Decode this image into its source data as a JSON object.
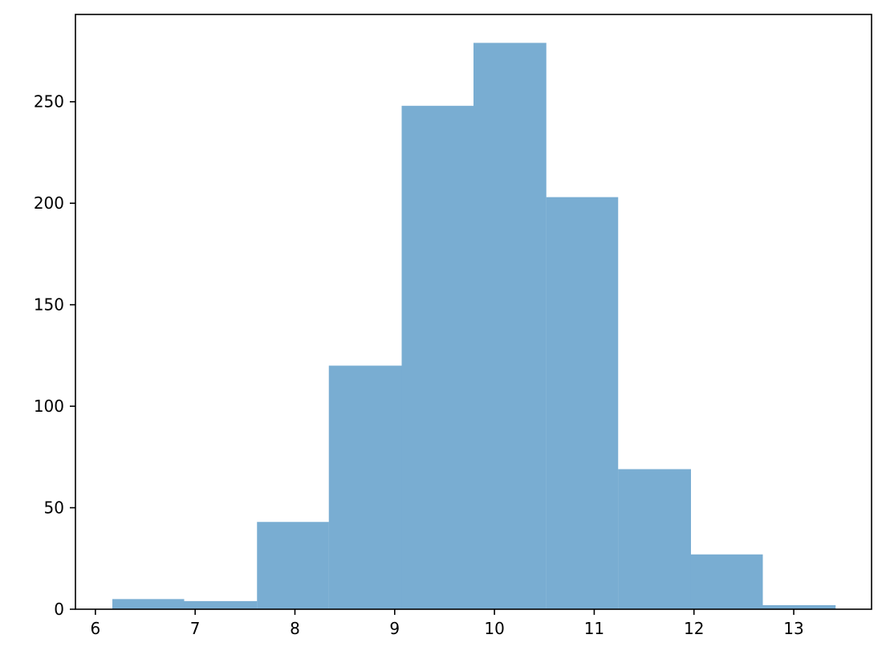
{
  "chart_data": {
    "type": "bar",
    "subtype": "histogram",
    "title": "",
    "xlabel": "",
    "ylabel": "",
    "bins": [
      {
        "x0": 6.17,
        "x1": 6.89,
        "count": 5
      },
      {
        "x0": 6.89,
        "x1": 7.62,
        "count": 4
      },
      {
        "x0": 7.62,
        "x1": 8.34,
        "count": 43
      },
      {
        "x0": 8.34,
        "x1": 9.07,
        "count": 120
      },
      {
        "x0": 9.07,
        "x1": 9.79,
        "count": 248
      },
      {
        "x0": 9.79,
        "x1": 10.52,
        "count": 279
      },
      {
        "x0": 10.52,
        "x1": 11.24,
        "count": 203
      },
      {
        "x0": 11.24,
        "x1": 11.97,
        "count": 69
      },
      {
        "x0": 11.97,
        "x1": 12.69,
        "count": 27
      },
      {
        "x0": 12.69,
        "x1": 13.42,
        "count": 2
      }
    ],
    "xlim": [
      5.8,
      13.78
    ],
    "ylim": [
      0,
      293
    ],
    "x_ticks": [
      6,
      7,
      8,
      9,
      10,
      11,
      12,
      13
    ],
    "y_ticks": [
      0,
      50,
      100,
      150,
      200,
      250
    ],
    "bar_color": "#1f77b4",
    "bar_opacity": 0.6,
    "grid": false,
    "legend": "none"
  }
}
